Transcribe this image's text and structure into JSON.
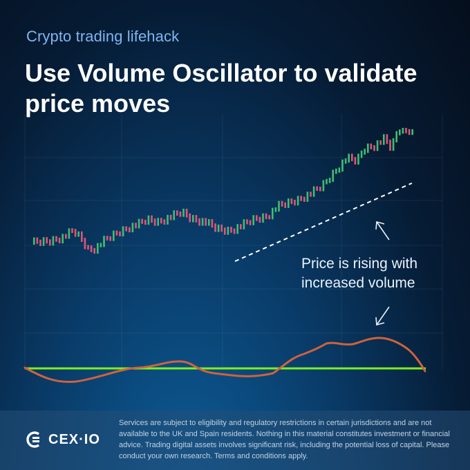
{
  "header": {
    "subtitle": "Crypto trading lifehack",
    "title": "Use Volume Oscillator to validate price moves"
  },
  "annotation": {
    "text": "Price is rising with increased volume"
  },
  "footer": {
    "brand": "CEX·IO",
    "disclaimer": "Services are subject to eligibility and regulatory restrictions in certain jurisdictions and are not available to the UK and Spain residents. Nothing in this material constitutes investment or financial advice. Trading digital assets involves significant risk, including the potential loss of capital. Please conduct your own research. Terms and conditions apply."
  },
  "colors": {
    "up_candle": "#3fbf6f",
    "down_candle": "#e0557a",
    "zero_line": "#7cf01e",
    "oscillator": "#d0623d",
    "subtitle": "#7fb6f2"
  },
  "icons": {
    "arrow_up": "arrow-up-left-icon",
    "arrow_down": "arrow-down-left-icon",
    "logo": "cex-io-logo-icon"
  }
}
